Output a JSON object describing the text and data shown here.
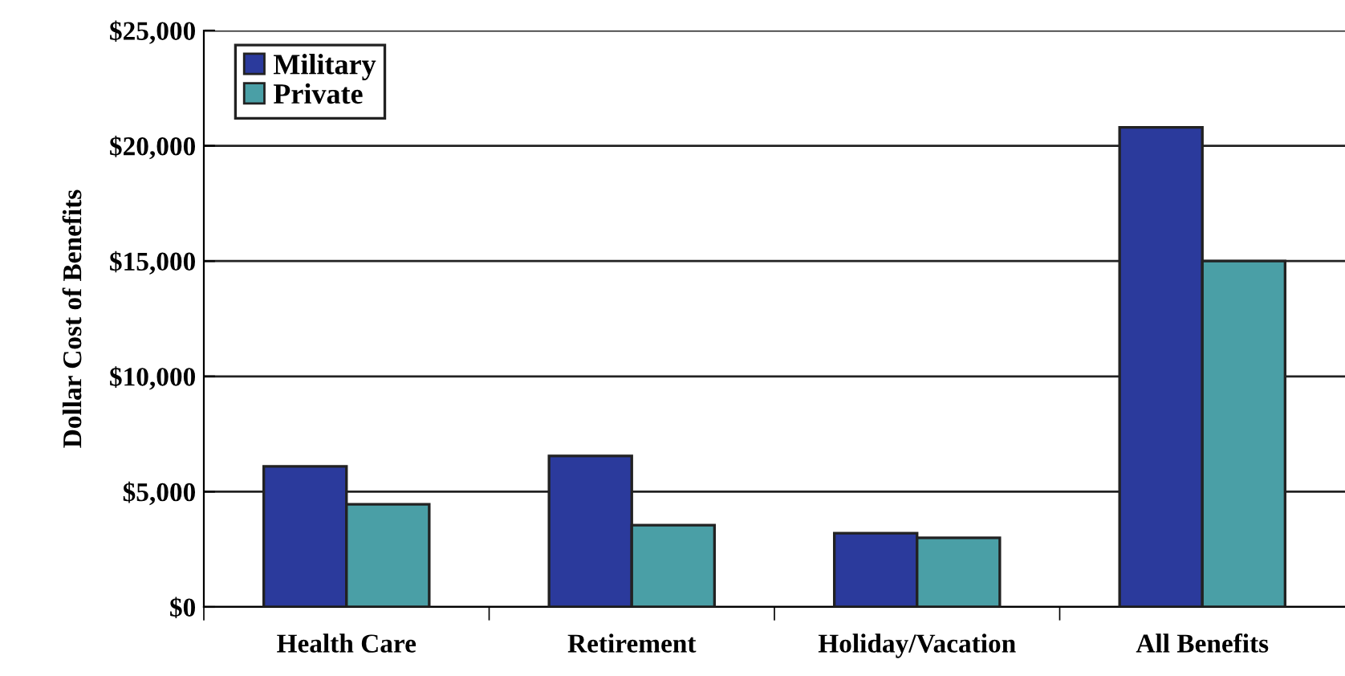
{
  "chart_data": {
    "type": "bar",
    "ylabel": "Dollar Cost of Benefits",
    "categories": [
      "Health Care",
      "Retirement",
      "Holiday/Vacation",
      "All Benefits"
    ],
    "series": [
      {
        "name": "Military",
        "color": "#2b3a9c",
        "values": [
          6100,
          6550,
          3200,
          20800
        ]
      },
      {
        "name": "Private",
        "color": "#4a9fa6",
        "values": [
          4450,
          3550,
          3000,
          15000
        ]
      }
    ],
    "ylim": [
      0,
      25000
    ],
    "yticks": [
      {
        "value": 0,
        "label": "$0"
      },
      {
        "value": 5000,
        "label": "$5,000"
      },
      {
        "value": 10000,
        "label": "$10,000"
      },
      {
        "value": 15000,
        "label": "$15,000"
      },
      {
        "value": 20000,
        "label": "$20,000"
      },
      {
        "value": 25000,
        "label": "$25,000"
      }
    ],
    "grid": "y",
    "legend": "top left"
  }
}
